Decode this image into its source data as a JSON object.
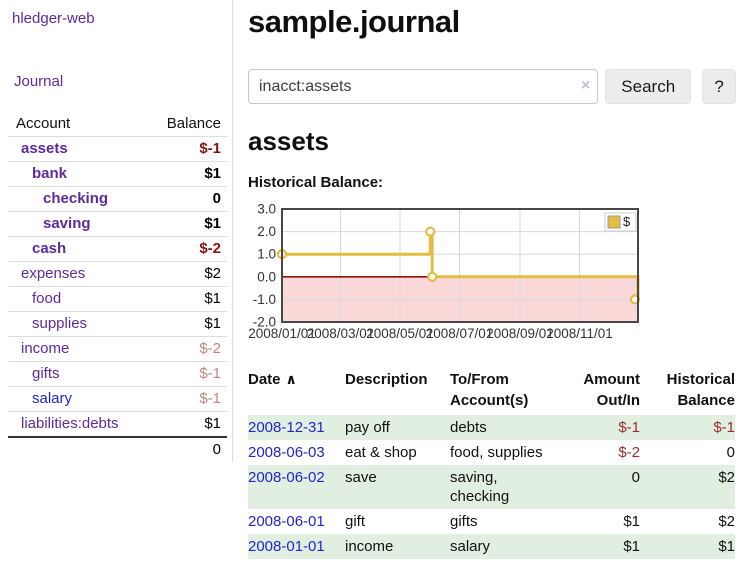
{
  "app": {
    "brand": "hledger-web"
  },
  "sidebar": {
    "nav_journal": "Journal",
    "headers": {
      "account": "Account",
      "balance": "Balance"
    },
    "accounts": [
      {
        "name": "assets",
        "balance": "$-1"
      },
      {
        "name": "bank",
        "balance": "$1"
      },
      {
        "name": "checking",
        "balance": "0"
      },
      {
        "name": "saving",
        "balance": "$1"
      },
      {
        "name": "cash",
        "balance": "$-2"
      },
      {
        "name": "expenses",
        "balance": "$2"
      },
      {
        "name": "food",
        "balance": "$1"
      },
      {
        "name": "supplies",
        "balance": "$1"
      },
      {
        "name": "income",
        "balance": "$-2"
      },
      {
        "name": "gifts",
        "balance": "$-1"
      },
      {
        "name": "salary",
        "balance": "$-1"
      },
      {
        "name": "liabilities:debts",
        "balance": "$1"
      }
    ],
    "total": "0"
  },
  "header": {
    "title": "sample.journal"
  },
  "search": {
    "value": "inacct:assets",
    "button": "Search",
    "help": "?"
  },
  "icons": {
    "clear": "×",
    "sort_asc": "∧"
  },
  "section": {
    "title": "assets",
    "chart_heading": "Historical Balance:"
  },
  "chart_data": {
    "type": "line",
    "step": true,
    "title": "Historical Balance",
    "legend": {
      "position": "top-right",
      "entries": [
        "$"
      ]
    },
    "series": [
      {
        "name": "$",
        "points": [
          {
            "date": "2008-01-01",
            "value": 1
          },
          {
            "date": "2008-06-01",
            "value": 2
          },
          {
            "date": "2008-06-03",
            "value": 0
          },
          {
            "date": "2008-12-31",
            "value": -1
          }
        ]
      }
    ],
    "xlim": [
      "2008-01-01",
      "2008-12-31"
    ],
    "ylim": [
      -2,
      3
    ],
    "x_ticks": [
      {
        "date": "2008-01-01",
        "label": "2008/01/01"
      },
      {
        "date": "2008-03-01",
        "label": "2008/03/01"
      },
      {
        "date": "2008-05-01",
        "label": "2008/05/01"
      },
      {
        "date": "2008-07-01",
        "label": "2008/07/01"
      },
      {
        "date": "2008-09-01",
        "label": "2008/09/01"
      },
      {
        "date": "2008-11-01",
        "label": "2008/11/01"
      }
    ],
    "y_ticks": [
      "3.0",
      "2.0",
      "1.0",
      "0.0",
      "-1.0",
      "-2.0"
    ],
    "grid": true,
    "colors": {
      "line": "#e5bc42",
      "marker_fill": "#ffffff",
      "negative_region": "#fbd8d8",
      "zero_line": "#8f1010",
      "grid": "#d8d8d8",
      "border": "#474747"
    }
  },
  "register": {
    "headers": {
      "date": "Date",
      "description": "Description",
      "tofrom": "To/From\nAccount(s)",
      "amount": "Amount\nOut/In",
      "historical": "Historical\nBalance"
    },
    "rows": [
      {
        "date": "2008-12-31",
        "description": "pay off",
        "tofrom": "debts",
        "amount": "$-1",
        "historical": "$-1"
      },
      {
        "date": "2008-06-03",
        "description": "eat & shop",
        "tofrom": "food, supplies",
        "amount": "$-2",
        "historical": "0"
      },
      {
        "date": "2008-06-02",
        "description": "save",
        "tofrom": "saving,\nchecking",
        "amount": "0",
        "historical": "$2"
      },
      {
        "date": "2008-06-01",
        "description": "gift",
        "tofrom": "gifts",
        "amount": "$1",
        "historical": "$2"
      },
      {
        "date": "2008-01-01",
        "description": "income",
        "tofrom": "salary",
        "amount": "$1",
        "historical": "$1"
      }
    ]
  }
}
